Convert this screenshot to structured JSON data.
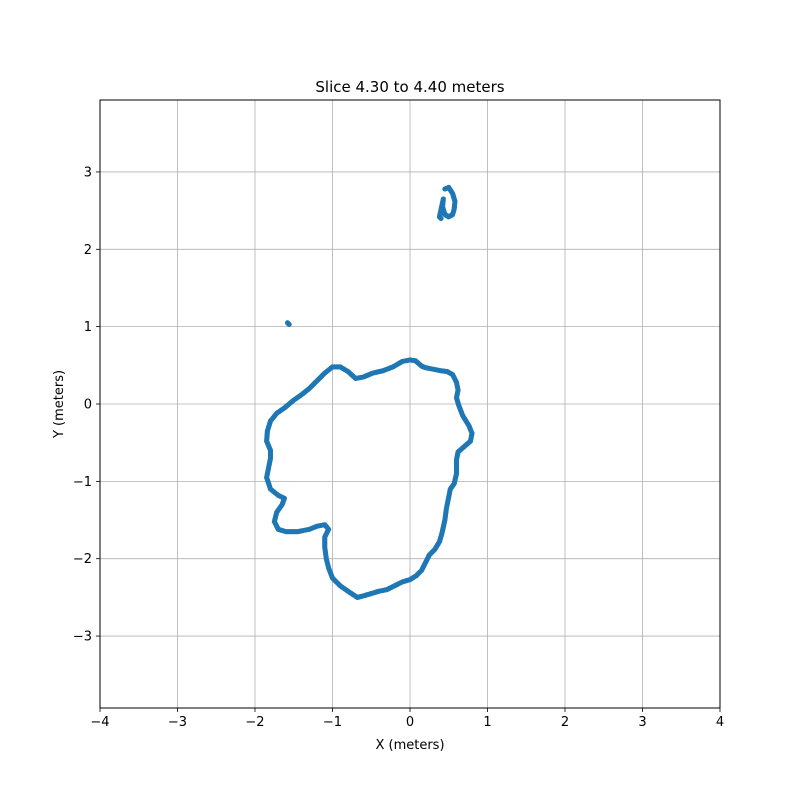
{
  "chart_data": {
    "type": "scatter",
    "title": "Slice 4.30 to 4.40 meters",
    "xlabel": "X (meters)",
    "ylabel": "Y (meters)",
    "xlim": [
      -4,
      4
    ],
    "ylim": [
      -3.93,
      3.93
    ],
    "xticks": [
      -4,
      -3,
      -2,
      -1,
      0,
      1,
      2,
      3,
      4
    ],
    "yticks": [
      -3,
      -2,
      -1,
      0,
      1,
      2,
      3
    ],
    "xtick_labels": [
      "−4",
      "−3",
      "−2",
      "−1",
      "0",
      "1",
      "2",
      "3",
      "4"
    ],
    "ytick_labels": [
      "−3",
      "−2",
      "−1",
      "0",
      "1",
      "2",
      "3"
    ],
    "grid": true,
    "marker_color": "#1f77b4",
    "series": [
      {
        "values": [
          [
            0.0,
            0.57
          ],
          [
            0.07,
            0.56
          ],
          [
            0.15,
            0.49
          ],
          [
            0.2,
            0.47
          ],
          [
            0.3,
            0.45
          ],
          [
            0.4,
            0.43
          ],
          [
            0.48,
            0.42
          ],
          [
            0.55,
            0.38
          ],
          [
            0.6,
            0.28
          ],
          [
            0.62,
            0.18
          ],
          [
            0.6,
            0.08
          ],
          [
            0.63,
            -0.02
          ],
          [
            0.68,
            -0.15
          ],
          [
            0.76,
            -0.28
          ],
          [
            0.8,
            -0.38
          ],
          [
            0.78,
            -0.48
          ],
          [
            0.7,
            -0.55
          ],
          [
            0.62,
            -0.62
          ],
          [
            0.6,
            -0.72
          ],
          [
            0.6,
            -0.82
          ],
          [
            0.6,
            -0.9
          ],
          [
            0.57,
            -1.03
          ],
          [
            0.52,
            -1.1
          ],
          [
            0.5,
            -1.2
          ],
          [
            0.47,
            -1.35
          ],
          [
            0.45,
            -1.5
          ],
          [
            0.41,
            -1.68
          ],
          [
            0.38,
            -1.78
          ],
          [
            0.32,
            -1.88
          ],
          [
            0.25,
            -1.95
          ],
          [
            0.2,
            -2.05
          ],
          [
            0.15,
            -2.15
          ],
          [
            0.08,
            -2.22
          ],
          [
            0.0,
            -2.27
          ],
          [
            -0.1,
            -2.3
          ],
          [
            -0.2,
            -2.35
          ],
          [
            -0.3,
            -2.4
          ],
          [
            -0.4,
            -2.42
          ],
          [
            -0.5,
            -2.45
          ],
          [
            -0.6,
            -2.48
          ],
          [
            -0.68,
            -2.5
          ],
          [
            -0.8,
            -2.42
          ],
          [
            -0.9,
            -2.35
          ],
          [
            -1.0,
            -2.25
          ],
          [
            -1.05,
            -2.12
          ],
          [
            -1.08,
            -2.0
          ],
          [
            -1.1,
            -1.85
          ],
          [
            -1.1,
            -1.72
          ],
          [
            -1.05,
            -1.62
          ],
          [
            -1.1,
            -1.56
          ],
          [
            -1.2,
            -1.58
          ],
          [
            -1.3,
            -1.62
          ],
          [
            -1.45,
            -1.65
          ],
          [
            -1.6,
            -1.65
          ],
          [
            -1.7,
            -1.62
          ],
          [
            -1.75,
            -1.52
          ],
          [
            -1.72,
            -1.4
          ],
          [
            -1.65,
            -1.3
          ],
          [
            -1.62,
            -1.22
          ],
          [
            -1.7,
            -1.18
          ],
          [
            -1.8,
            -1.1
          ],
          [
            -1.85,
            -0.95
          ],
          [
            -1.82,
            -0.8
          ],
          [
            -1.8,
            -0.7
          ],
          [
            -1.8,
            -0.6
          ],
          [
            -1.85,
            -0.48
          ],
          [
            -1.84,
            -0.35
          ],
          [
            -1.8,
            -0.22
          ],
          [
            -1.72,
            -0.12
          ],
          [
            -1.62,
            -0.05
          ],
          [
            -1.5,
            0.05
          ],
          [
            -1.4,
            0.12
          ],
          [
            -1.3,
            0.2
          ],
          [
            -1.2,
            0.3
          ],
          [
            -1.1,
            0.4
          ],
          [
            -1.0,
            0.48
          ],
          [
            -0.9,
            0.48
          ],
          [
            -0.8,
            0.42
          ],
          [
            -0.7,
            0.33
          ],
          [
            -0.6,
            0.35
          ],
          [
            -0.48,
            0.4
          ],
          [
            -0.35,
            0.43
          ],
          [
            -0.22,
            0.48
          ],
          [
            -0.1,
            0.55
          ]
        ]
      },
      {
        "values": [
          [
            0.45,
            2.78
          ],
          [
            0.5,
            2.8
          ],
          [
            0.55,
            2.72
          ],
          [
            0.58,
            2.62
          ],
          [
            0.57,
            2.52
          ],
          [
            0.55,
            2.45
          ],
          [
            0.5,
            2.42
          ],
          [
            0.45,
            2.45
          ],
          [
            0.42,
            2.55
          ],
          [
            0.43,
            2.65
          ],
          [
            0.38,
            2.42
          ],
          [
            0.4,
            2.4
          ]
        ]
      },
      {
        "values": [
          [
            -1.58,
            1.05
          ],
          [
            -1.56,
            1.03
          ]
        ]
      }
    ]
  }
}
